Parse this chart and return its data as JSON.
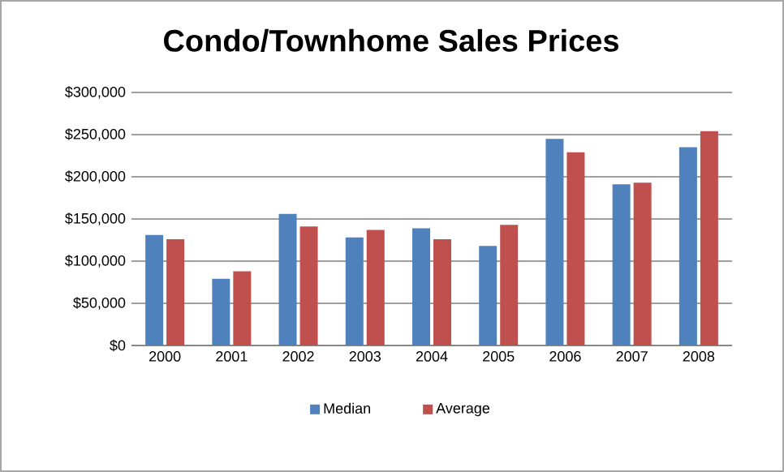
{
  "chart_data": {
    "type": "bar",
    "title": "Condo/Townhome Sales Prices",
    "categories": [
      "2000",
      "2001",
      "2002",
      "2003",
      "2004",
      "2005",
      "2006",
      "2007",
      "2008"
    ],
    "series": [
      {
        "name": "Median",
        "color": "#4f81bd",
        "values": [
          131000,
          79000,
          156000,
          128000,
          139000,
          118000,
          245000,
          191000,
          235000
        ]
      },
      {
        "name": "Average",
        "color": "#c0504d",
        "values": [
          126000,
          88000,
          141000,
          137000,
          126000,
          143000,
          229000,
          193000,
          254000
        ]
      }
    ],
    "ylim": [
      0,
      300000
    ],
    "yticks": [
      {
        "value": 0,
        "label": "$0"
      },
      {
        "value": 50000,
        "label": "$50,000"
      },
      {
        "value": 100000,
        "label": "$100,000"
      },
      {
        "value": 150000,
        "label": "$150,000"
      },
      {
        "value": 200000,
        "label": "$200,000"
      },
      {
        "value": 250000,
        "label": "$250,000"
      },
      {
        "value": 300000,
        "label": "$300,000"
      }
    ],
    "grid": "y",
    "legend": "bottom"
  }
}
